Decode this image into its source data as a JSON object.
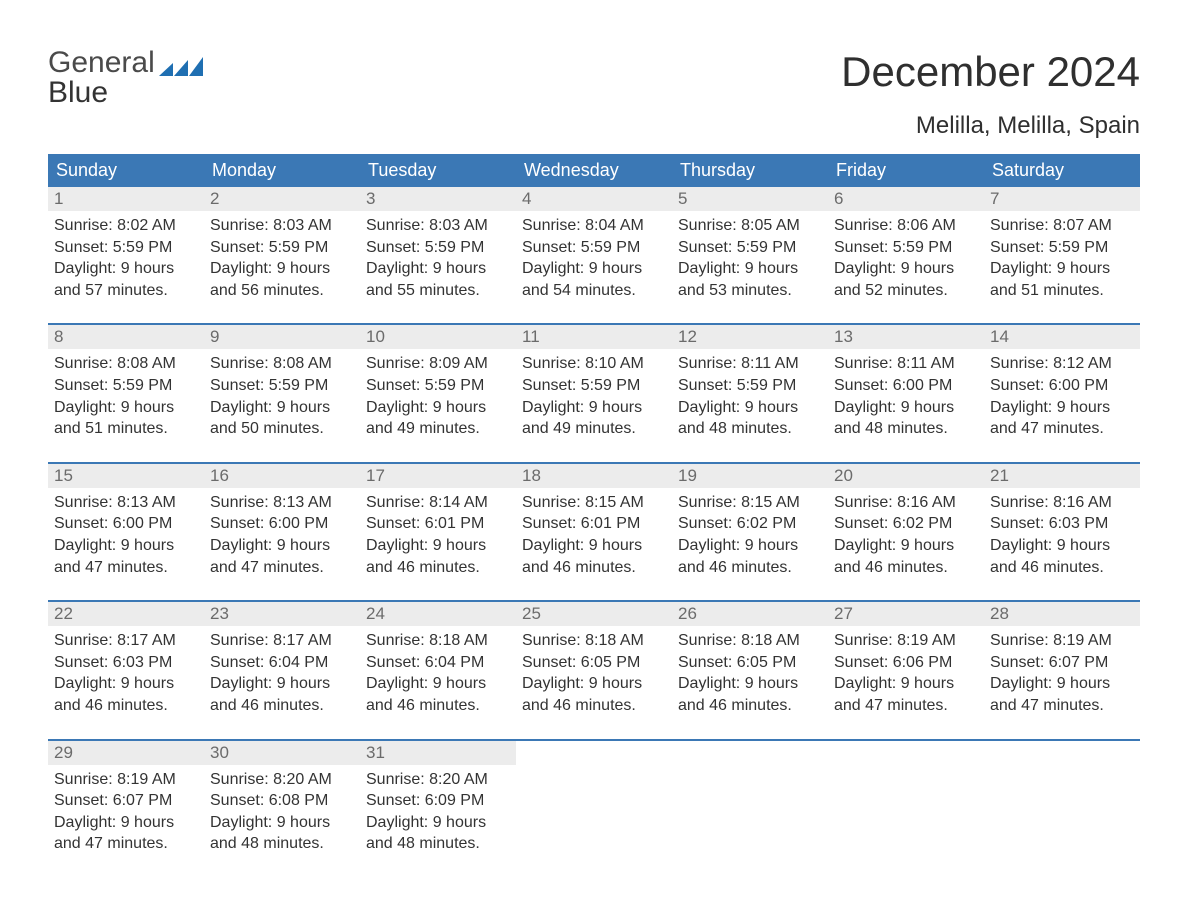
{
  "logo": {
    "part1": "General",
    "part2": "Blue"
  },
  "title": "December 2024",
  "location": "Melilla, Melilla, Spain",
  "colors": {
    "header_blue": "#3b78b5",
    "logo_blue": "#1f6fb2",
    "logo_dark": "#4a4a4a",
    "day_bg": "#ececec",
    "text": "#333333"
  },
  "weekdays": [
    "Sunday",
    "Monday",
    "Tuesday",
    "Wednesday",
    "Thursday",
    "Friday",
    "Saturday"
  ],
  "weeks": [
    [
      {
        "n": "1",
        "sunrise": "Sunrise: 8:02 AM",
        "sunset": "Sunset: 5:59 PM",
        "d1": "Daylight: 9 hours",
        "d2": "and 57 minutes."
      },
      {
        "n": "2",
        "sunrise": "Sunrise: 8:03 AM",
        "sunset": "Sunset: 5:59 PM",
        "d1": "Daylight: 9 hours",
        "d2": "and 56 minutes."
      },
      {
        "n": "3",
        "sunrise": "Sunrise: 8:03 AM",
        "sunset": "Sunset: 5:59 PM",
        "d1": "Daylight: 9 hours",
        "d2": "and 55 minutes."
      },
      {
        "n": "4",
        "sunrise": "Sunrise: 8:04 AM",
        "sunset": "Sunset: 5:59 PM",
        "d1": "Daylight: 9 hours",
        "d2": "and 54 minutes."
      },
      {
        "n": "5",
        "sunrise": "Sunrise: 8:05 AM",
        "sunset": "Sunset: 5:59 PM",
        "d1": "Daylight: 9 hours",
        "d2": "and 53 minutes."
      },
      {
        "n": "6",
        "sunrise": "Sunrise: 8:06 AM",
        "sunset": "Sunset: 5:59 PM",
        "d1": "Daylight: 9 hours",
        "d2": "and 52 minutes."
      },
      {
        "n": "7",
        "sunrise": "Sunrise: 8:07 AM",
        "sunset": "Sunset: 5:59 PM",
        "d1": "Daylight: 9 hours",
        "d2": "and 51 minutes."
      }
    ],
    [
      {
        "n": "8",
        "sunrise": "Sunrise: 8:08 AM",
        "sunset": "Sunset: 5:59 PM",
        "d1": "Daylight: 9 hours",
        "d2": "and 51 minutes."
      },
      {
        "n": "9",
        "sunrise": "Sunrise: 8:08 AM",
        "sunset": "Sunset: 5:59 PM",
        "d1": "Daylight: 9 hours",
        "d2": "and 50 minutes."
      },
      {
        "n": "10",
        "sunrise": "Sunrise: 8:09 AM",
        "sunset": "Sunset: 5:59 PM",
        "d1": "Daylight: 9 hours",
        "d2": "and 49 minutes."
      },
      {
        "n": "11",
        "sunrise": "Sunrise: 8:10 AM",
        "sunset": "Sunset: 5:59 PM",
        "d1": "Daylight: 9 hours",
        "d2": "and 49 minutes."
      },
      {
        "n": "12",
        "sunrise": "Sunrise: 8:11 AM",
        "sunset": "Sunset: 5:59 PM",
        "d1": "Daylight: 9 hours",
        "d2": "and 48 minutes."
      },
      {
        "n": "13",
        "sunrise": "Sunrise: 8:11 AM",
        "sunset": "Sunset: 6:00 PM",
        "d1": "Daylight: 9 hours",
        "d2": "and 48 minutes."
      },
      {
        "n": "14",
        "sunrise": "Sunrise: 8:12 AM",
        "sunset": "Sunset: 6:00 PM",
        "d1": "Daylight: 9 hours",
        "d2": "and 47 minutes."
      }
    ],
    [
      {
        "n": "15",
        "sunrise": "Sunrise: 8:13 AM",
        "sunset": "Sunset: 6:00 PM",
        "d1": "Daylight: 9 hours",
        "d2": "and 47 minutes."
      },
      {
        "n": "16",
        "sunrise": "Sunrise: 8:13 AM",
        "sunset": "Sunset: 6:00 PM",
        "d1": "Daylight: 9 hours",
        "d2": "and 47 minutes."
      },
      {
        "n": "17",
        "sunrise": "Sunrise: 8:14 AM",
        "sunset": "Sunset: 6:01 PM",
        "d1": "Daylight: 9 hours",
        "d2": "and 46 minutes."
      },
      {
        "n": "18",
        "sunrise": "Sunrise: 8:15 AM",
        "sunset": "Sunset: 6:01 PM",
        "d1": "Daylight: 9 hours",
        "d2": "and 46 minutes."
      },
      {
        "n": "19",
        "sunrise": "Sunrise: 8:15 AM",
        "sunset": "Sunset: 6:02 PM",
        "d1": "Daylight: 9 hours",
        "d2": "and 46 minutes."
      },
      {
        "n": "20",
        "sunrise": "Sunrise: 8:16 AM",
        "sunset": "Sunset: 6:02 PM",
        "d1": "Daylight: 9 hours",
        "d2": "and 46 minutes."
      },
      {
        "n": "21",
        "sunrise": "Sunrise: 8:16 AM",
        "sunset": "Sunset: 6:03 PM",
        "d1": "Daylight: 9 hours",
        "d2": "and 46 minutes."
      }
    ],
    [
      {
        "n": "22",
        "sunrise": "Sunrise: 8:17 AM",
        "sunset": "Sunset: 6:03 PM",
        "d1": "Daylight: 9 hours",
        "d2": "and 46 minutes."
      },
      {
        "n": "23",
        "sunrise": "Sunrise: 8:17 AM",
        "sunset": "Sunset: 6:04 PM",
        "d1": "Daylight: 9 hours",
        "d2": "and 46 minutes."
      },
      {
        "n": "24",
        "sunrise": "Sunrise: 8:18 AM",
        "sunset": "Sunset: 6:04 PM",
        "d1": "Daylight: 9 hours",
        "d2": "and 46 minutes."
      },
      {
        "n": "25",
        "sunrise": "Sunrise: 8:18 AM",
        "sunset": "Sunset: 6:05 PM",
        "d1": "Daylight: 9 hours",
        "d2": "and 46 minutes."
      },
      {
        "n": "26",
        "sunrise": "Sunrise: 8:18 AM",
        "sunset": "Sunset: 6:05 PM",
        "d1": "Daylight: 9 hours",
        "d2": "and 46 minutes."
      },
      {
        "n": "27",
        "sunrise": "Sunrise: 8:19 AM",
        "sunset": "Sunset: 6:06 PM",
        "d1": "Daylight: 9 hours",
        "d2": "and 47 minutes."
      },
      {
        "n": "28",
        "sunrise": "Sunrise: 8:19 AM",
        "sunset": "Sunset: 6:07 PM",
        "d1": "Daylight: 9 hours",
        "d2": "and 47 minutes."
      }
    ],
    [
      {
        "n": "29",
        "sunrise": "Sunrise: 8:19 AM",
        "sunset": "Sunset: 6:07 PM",
        "d1": "Daylight: 9 hours",
        "d2": "and 47 minutes."
      },
      {
        "n": "30",
        "sunrise": "Sunrise: 8:20 AM",
        "sunset": "Sunset: 6:08 PM",
        "d1": "Daylight: 9 hours",
        "d2": "and 48 minutes."
      },
      {
        "n": "31",
        "sunrise": "Sunrise: 8:20 AM",
        "sunset": "Sunset: 6:09 PM",
        "d1": "Daylight: 9 hours",
        "d2": "and 48 minutes."
      },
      {
        "empty": true
      },
      {
        "empty": true
      },
      {
        "empty": true
      },
      {
        "empty": true
      }
    ]
  ]
}
